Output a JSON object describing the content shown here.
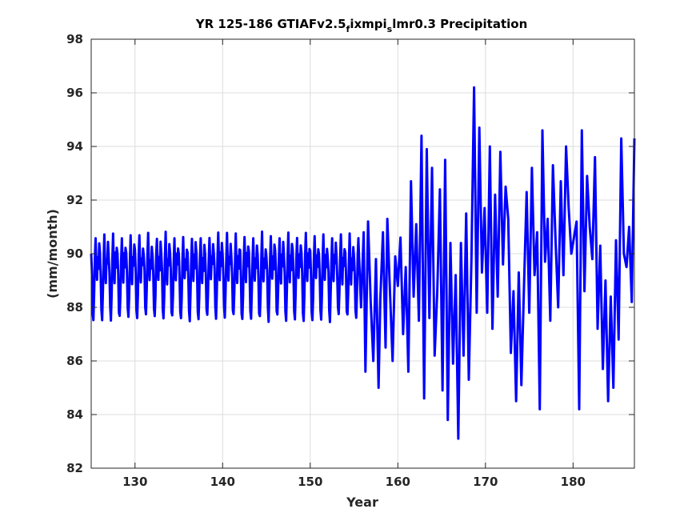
{
  "chart_data": {
    "type": "line",
    "title_parts": [
      "YR 125-186 GTIAFv2.5",
      "f",
      "ixmpi",
      "s",
      "lmr0.3 Precipitation"
    ],
    "xlabel": "Year",
    "ylabel": "(mm/month)",
    "xlim": [
      125,
      187
    ],
    "ylim": [
      82,
      98
    ],
    "xticks": [
      130,
      140,
      150,
      160,
      170,
      180
    ],
    "yticks": [
      82,
      84,
      86,
      88,
      90,
      92,
      94,
      96,
      98
    ],
    "grid": true,
    "colors": {
      "line": "#0000ff",
      "grid": "#dcdcdc",
      "axis": "#262626"
    },
    "series": [
      {
        "regular_regime": {
          "x_start": 125,
          "x_end": 155.5,
          "cycle_period_years": 1,
          "annual_cycle_shape": [
            90.0,
            89.3,
            87.9,
            87.6,
            88.5,
            89.8,
            90.7,
            89.6,
            89.0,
            89.9,
            89.5,
            90.3
          ],
          "monthly_noise": 0.15
        },
        "variable_regime": {
          "x": [
            155.5,
            155.8,
            156.1,
            156.3,
            156.6,
            156.9,
            157.2,
            157.5,
            157.8,
            158.0,
            158.3,
            158.6,
            158.8,
            159.1,
            159.4,
            159.7,
            160.0,
            160.3,
            160.6,
            160.9,
            161.2,
            161.5,
            161.8,
            162.1,
            162.4,
            162.7,
            163.0,
            163.3,
            163.6,
            163.9,
            164.2,
            164.5,
            164.8,
            165.1,
            165.4,
            165.7,
            166.0,
            166.3,
            166.6,
            166.9,
            167.2,
            167.5,
            167.8,
            168.1,
            168.4,
            168.7,
            169.0,
            169.3,
            169.6,
            169.9,
            170.2,
            170.5,
            170.8,
            171.1,
            171.4,
            171.7,
            172.0,
            172.3,
            172.6,
            172.9,
            173.2,
            173.5,
            173.8,
            174.1,
            174.4,
            174.7,
            175.0,
            175.3,
            175.6,
            175.9,
            176.2,
            176.5,
            176.8,
            177.1,
            177.4,
            177.7,
            178.0,
            178.3,
            178.6,
            178.9,
            179.2,
            179.5,
            179.8,
            180.1,
            180.4,
            180.7,
            181.0,
            181.3,
            181.6,
            181.9,
            182.2,
            182.5,
            182.8,
            183.1,
            183.4,
            183.7,
            184.0,
            184.3,
            184.6,
            184.9,
            185.2,
            185.5,
            185.8,
            186.1,
            186.4,
            186.7,
            187.0
          ],
          "y": [
            90.5,
            88.0,
            90.8,
            85.6,
            91.2,
            88.2,
            86.0,
            89.8,
            85.0,
            88.3,
            90.8,
            86.5,
            91.3,
            88.6,
            86.0,
            89.9,
            88.8,
            90.6,
            87.0,
            89.5,
            85.6,
            92.7,
            88.4,
            91.1,
            87.5,
            94.4,
            84.6,
            93.9,
            87.6,
            93.2,
            86.2,
            88.6,
            92.4,
            84.9,
            93.5,
            83.8,
            90.4,
            85.9,
            89.2,
            83.1,
            90.4,
            86.2,
            91.5,
            85.3,
            89.8,
            96.2,
            87.8,
            94.7,
            89.3,
            91.7,
            87.8,
            94.0,
            87.2,
            92.2,
            88.4,
            93.8,
            89.6,
            92.5,
            91.3,
            86.3,
            88.6,
            84.5,
            89.3,
            85.1,
            88.8,
            92.3,
            87.8,
            93.2,
            89.2,
            90.8,
            84.2,
            94.6,
            89.7,
            91.3,
            87.5,
            93.3,
            90.5,
            88.0,
            92.7,
            89.2,
            94.0,
            91.7,
            90.0,
            90.6,
            91.2,
            84.2,
            94.6,
            88.6,
            92.9,
            91.0,
            89.8,
            93.6,
            87.2,
            90.3,
            85.7,
            89.0,
            84.5,
            88.4,
            85.0,
            90.5,
            86.8,
            94.3,
            90.0,
            89.5,
            91.0,
            88.2,
            94.3
          ]
        }
      }
    ]
  }
}
